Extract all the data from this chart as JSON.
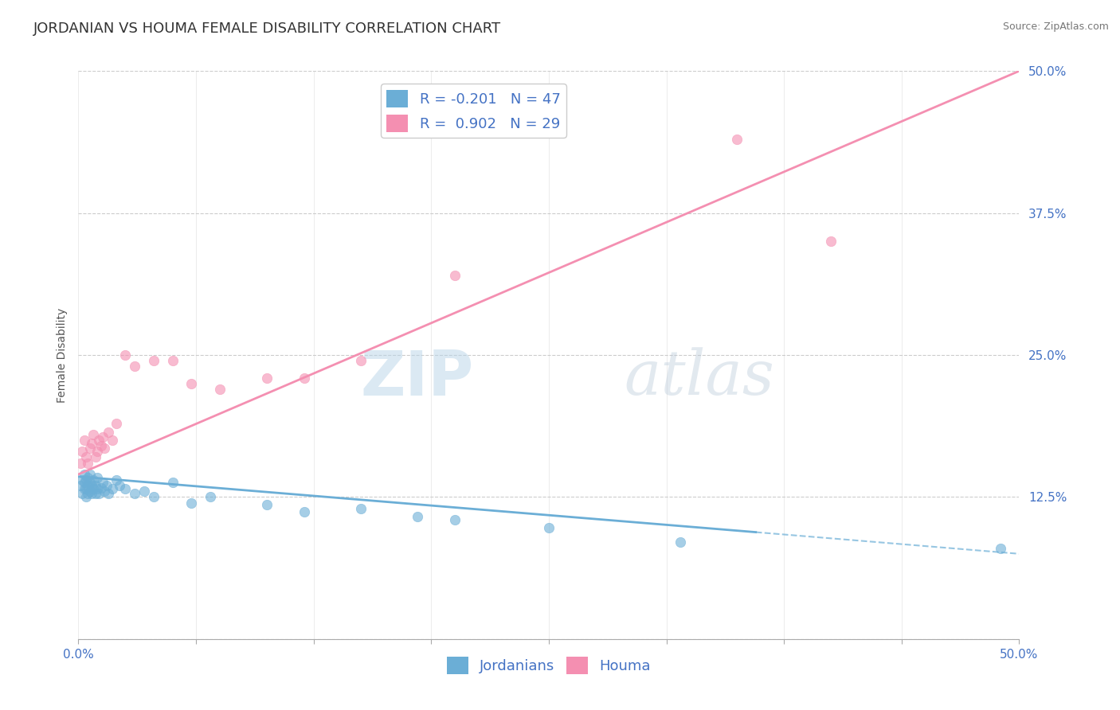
{
  "title": "JORDANIAN VS HOUMA FEMALE DISABILITY CORRELATION CHART",
  "source": "Source: ZipAtlas.com",
  "ylabel": "Female Disability",
  "xlim": [
    0.0,
    0.5
  ],
  "ylim": [
    0.0,
    0.5
  ],
  "xticks": [
    0.0,
    0.0625,
    0.125,
    0.1875,
    0.25,
    0.3125,
    0.375,
    0.4375,
    0.5
  ],
  "yticks": [
    0.0,
    0.125,
    0.25,
    0.375,
    0.5
  ],
  "xtick_labels": [
    "0.0%",
    "",
    "",
    "",
    "",
    "",
    "",
    "",
    "50.0%"
  ],
  "ytick_labels": [
    "",
    "12.5%",
    "25.0%",
    "37.5%",
    "50.0%"
  ],
  "legend_r1": "R = -0.201",
  "legend_n1": "N = 47",
  "legend_r2": "R =  0.902",
  "legend_n2": "N = 29",
  "jordanian_color": "#6baed6",
  "houma_color": "#f48fb1",
  "background_color": "#ffffff",
  "watermark_zip": "ZIP",
  "watermark_atlas": "atlas",
  "title_fontsize": 13,
  "axis_label_fontsize": 10,
  "tick_fontsize": 11,
  "legend_fontsize": 13,
  "watermark_fontsize_zip": 56,
  "watermark_fontsize_atlas": 56,
  "jordanian_x": [
    0.001,
    0.002,
    0.002,
    0.003,
    0.003,
    0.003,
    0.004,
    0.004,
    0.004,
    0.005,
    0.005,
    0.005,
    0.006,
    0.006,
    0.006,
    0.007,
    0.007,
    0.008,
    0.008,
    0.009,
    0.009,
    0.01,
    0.01,
    0.011,
    0.012,
    0.013,
    0.014,
    0.015,
    0.016,
    0.018,
    0.02,
    0.022,
    0.025,
    0.03,
    0.035,
    0.04,
    0.05,
    0.06,
    0.07,
    0.1,
    0.12,
    0.15,
    0.18,
    0.2,
    0.25,
    0.32,
    0.49
  ],
  "jordanian_y": [
    0.135,
    0.128,
    0.14,
    0.132,
    0.138,
    0.145,
    0.125,
    0.132,
    0.14,
    0.128,
    0.135,
    0.142,
    0.13,
    0.138,
    0.145,
    0.128,
    0.135,
    0.132,
    0.14,
    0.128,
    0.135,
    0.132,
    0.142,
    0.128,
    0.133,
    0.138,
    0.13,
    0.135,
    0.128,
    0.132,
    0.14,
    0.135,
    0.132,
    0.128,
    0.13,
    0.125,
    0.138,
    0.12,
    0.125,
    0.118,
    0.112,
    0.115,
    0.108,
    0.105,
    0.098,
    0.085,
    0.08
  ],
  "houma_x": [
    0.001,
    0.002,
    0.003,
    0.004,
    0.005,
    0.006,
    0.007,
    0.008,
    0.009,
    0.01,
    0.011,
    0.012,
    0.013,
    0.014,
    0.016,
    0.018,
    0.02,
    0.025,
    0.03,
    0.04,
    0.05,
    0.06,
    0.075,
    0.1,
    0.12,
    0.15,
    0.2,
    0.35,
    0.4
  ],
  "houma_y": [
    0.155,
    0.165,
    0.175,
    0.16,
    0.155,
    0.168,
    0.172,
    0.18,
    0.16,
    0.165,
    0.175,
    0.17,
    0.178,
    0.168,
    0.182,
    0.175,
    0.19,
    0.25,
    0.24,
    0.245,
    0.245,
    0.225,
    0.22,
    0.23,
    0.23,
    0.245,
    0.32,
    0.44,
    0.35
  ],
  "blue_line_x0": 0.0,
  "blue_line_y0": 0.143,
  "blue_line_x1": 0.5,
  "blue_line_y1": 0.075,
  "blue_line_solid_end": 0.36,
  "pink_line_x0": 0.0,
  "pink_line_y0": 0.145,
  "pink_line_x1": 0.5,
  "pink_line_y1": 0.5
}
